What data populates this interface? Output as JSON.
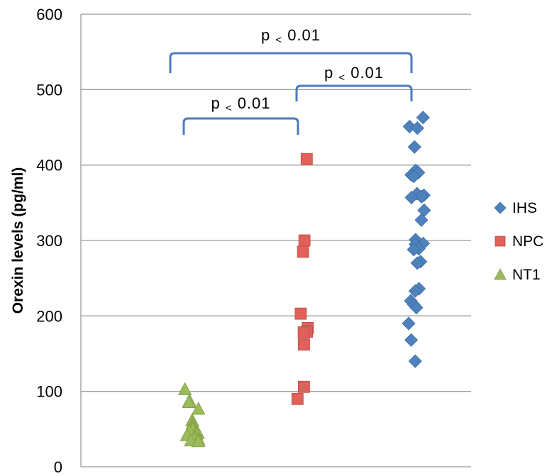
{
  "chart_data": {
    "type": "scatter",
    "title": "",
    "xlabel": "",
    "ylabel": "Orexin levels (pg/ml)",
    "ylim": [
      0,
      600
    ],
    "yticks": [
      "0",
      "100",
      "200",
      "300",
      "400",
      "500",
      "600"
    ],
    "grid": true,
    "legend_position": "right",
    "series": [
      {
        "name": "IHS",
        "marker": "diamond",
        "color": "#4f81bd",
        "points": [
          {
            "x": 3,
            "y": 463
          },
          {
            "x": 3,
            "y": 451
          },
          {
            "x": 3,
            "y": 449
          },
          {
            "x": 3,
            "y": 424
          },
          {
            "x": 3,
            "y": 393
          },
          {
            "x": 3,
            "y": 390
          },
          {
            "x": 3,
            "y": 387
          },
          {
            "x": 3,
            "y": 385
          },
          {
            "x": 3,
            "y": 362
          },
          {
            "x": 3,
            "y": 360
          },
          {
            "x": 3,
            "y": 358
          },
          {
            "x": 3,
            "y": 357
          },
          {
            "x": 3,
            "y": 340
          },
          {
            "x": 3,
            "y": 327
          },
          {
            "x": 3,
            "y": 301
          },
          {
            "x": 3,
            "y": 296
          },
          {
            "x": 3,
            "y": 295
          },
          {
            "x": 3,
            "y": 289
          },
          {
            "x": 3,
            "y": 288
          },
          {
            "x": 3,
            "y": 272
          },
          {
            "x": 3,
            "y": 270
          },
          {
            "x": 3,
            "y": 236
          },
          {
            "x": 3,
            "y": 233
          },
          {
            "x": 3,
            "y": 220
          },
          {
            "x": 3,
            "y": 215
          },
          {
            "x": 3,
            "y": 211
          },
          {
            "x": 3,
            "y": 190
          },
          {
            "x": 3,
            "y": 168
          },
          {
            "x": 3,
            "y": 140
          }
        ]
      },
      {
        "name": "NPC",
        "marker": "square",
        "color": "#e0605a",
        "points": [
          {
            "x": 2,
            "y": 408
          },
          {
            "x": 2,
            "y": 300
          },
          {
            "x": 2,
            "y": 285
          },
          {
            "x": 2,
            "y": 203
          },
          {
            "x": 2,
            "y": 184
          },
          {
            "x": 2,
            "y": 179
          },
          {
            "x": 2,
            "y": 178
          },
          {
            "x": 2,
            "y": 162
          },
          {
            "x": 2,
            "y": 106
          },
          {
            "x": 2,
            "y": 90
          }
        ]
      },
      {
        "name": "NT1",
        "marker": "triangle",
        "color": "#9bbb59",
        "points": [
          {
            "x": 1,
            "y": 103
          },
          {
            "x": 1,
            "y": 88
          },
          {
            "x": 1,
            "y": 86
          },
          {
            "x": 1,
            "y": 77
          },
          {
            "x": 1,
            "y": 62
          },
          {
            "x": 1,
            "y": 58
          },
          {
            "x": 1,
            "y": 55
          },
          {
            "x": 1,
            "y": 52
          },
          {
            "x": 1,
            "y": 50
          },
          {
            "x": 1,
            "y": 48
          },
          {
            "x": 1,
            "y": 45
          },
          {
            "x": 1,
            "y": 44
          },
          {
            "x": 1,
            "y": 42
          },
          {
            "x": 1,
            "y": 40
          },
          {
            "x": 1,
            "y": 38
          },
          {
            "x": 1,
            "y": 36
          },
          {
            "x": 1,
            "y": 35
          },
          {
            "x": 1,
            "y": 34
          }
        ]
      }
    ],
    "significance": [
      {
        "from": 1,
        "to": 2,
        "label_p": "p",
        "label_lt": "<",
        "label_val": "0.01"
      },
      {
        "from": 2,
        "to": 3,
        "label_p": "p",
        "label_lt": "<",
        "label_val": "0.01"
      },
      {
        "from": 1,
        "to": 3,
        "label_p": "p",
        "label_lt": "<",
        "label_val": "0.01"
      }
    ],
    "legend": [
      {
        "name": "IHS",
        "marker": "diamond",
        "color": "#4f81bd"
      },
      {
        "name": "NPC",
        "marker": "square",
        "color": "#e0605a"
      },
      {
        "name": "NT1",
        "marker": "triangle",
        "color": "#9bbb59"
      }
    ]
  }
}
